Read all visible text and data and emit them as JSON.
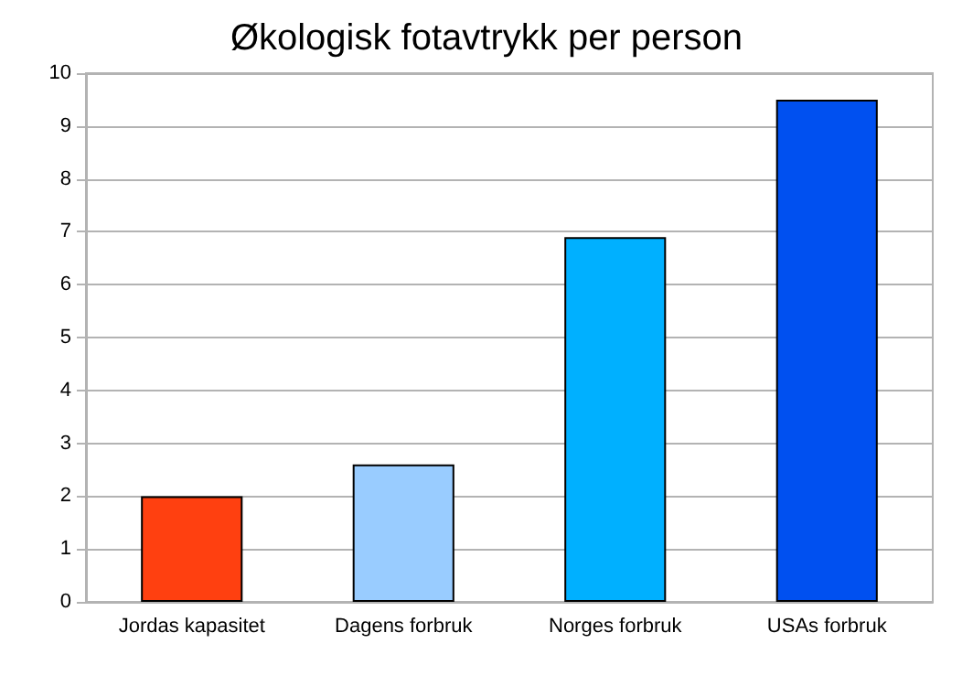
{
  "chart_data": {
    "type": "bar",
    "title": "Økologisk fotavtrykk per person",
    "categories": [
      "Jordas kapasitet",
      "Dagens forbruk",
      "Norges forbruk",
      "USAs forbruk"
    ],
    "values": [
      2,
      2.6,
      6.9,
      9.5
    ],
    "colors": [
      "#ff4010",
      "#99ccff",
      "#00b0ff",
      "#0050f0"
    ],
    "ylim": [
      0,
      10
    ],
    "yticks": [
      0,
      1,
      2,
      3,
      4,
      5,
      6,
      7,
      8,
      9,
      10
    ],
    "grid": "y"
  }
}
